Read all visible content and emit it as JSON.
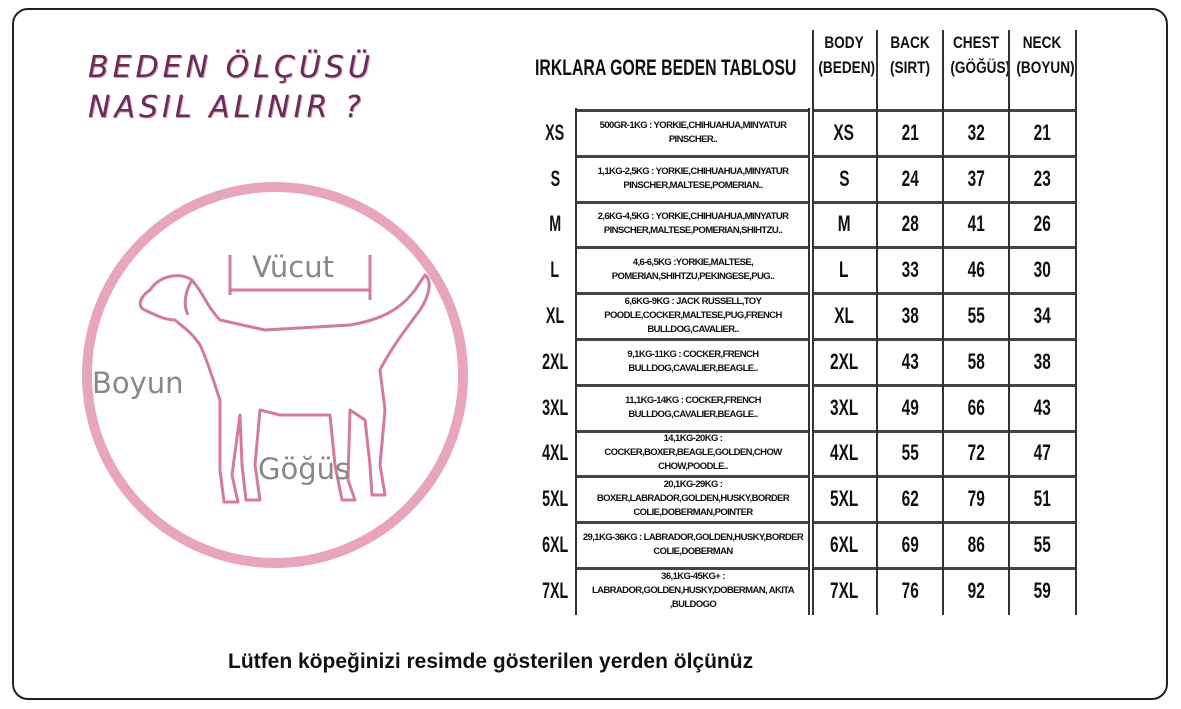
{
  "title_lines": [
    "BEDEN ÖLÇÜSÜ",
    "NASIL ALINIR ?"
  ],
  "diagram_labels": {
    "body": "Vücut",
    "neck": "Boyun",
    "chest": "Göğüs"
  },
  "colors": {
    "circle": "#e8a6bd",
    "dog_outline": "#d37aa0",
    "title": "#6b2a5a"
  },
  "table": {
    "title": "IRKLARA GORE BEDEN TABLOSU",
    "headers": [
      {
        "line1": "BODY",
        "line2": "(BEDEN)"
      },
      {
        "line1": "BACK",
        "line2": "(SIRT)"
      },
      {
        "line1": "CHEST",
        "line2": "(GÖĞÜS)"
      },
      {
        "line1": "NECK",
        "line2": "(BOYUN)"
      }
    ],
    "rows": [
      {
        "size": "XS",
        "desc": "500GR-1KG : YORKIE,CHIHUAHUA,MINYATUR PINSCHER..",
        "body": "XS",
        "back": "21",
        "chest": "32",
        "neck": "21"
      },
      {
        "size": "S",
        "desc": "1,1KG-2,5KG : YORKIE,CHIHUAHUA,MINYATUR PINSCHER,MALTESE,POMERIAN..",
        "body": "S",
        "back": "24",
        "chest": "37",
        "neck": "23"
      },
      {
        "size": "M",
        "desc": "2,6KG-4,5KG : YORKIE,CHIHUAHUA,MINYATUR PINSCHER,MALTESE,POMERIAN,SHIHTZU..",
        "body": "M",
        "back": "28",
        "chest": "41",
        "neck": "26"
      },
      {
        "size": "L",
        "desc": "4,6-6,5KG :YORKIE,MALTESE, POMERIAN,SHIHTZU,PEKINGESE,PUG..",
        "body": "L",
        "back": "33",
        "chest": "46",
        "neck": "30"
      },
      {
        "size": "XL",
        "desc": "6,6KG-9KG : JACK RUSSELL,TOY POODLE,COCKER,MALTESE,PUG,FRENCH BULLDOG,CAVALIER..",
        "body": "XL",
        "back": "38",
        "chest": "55",
        "neck": "34"
      },
      {
        "size": "2XL",
        "desc": "9,1KG-11KG : COCKER,FRENCH BULLDOG,CAVALIER,BEAGLE..",
        "body": "2XL",
        "back": "43",
        "chest": "58",
        "neck": "38"
      },
      {
        "size": "3XL",
        "desc": "11,1KG-14KG : COCKER,FRENCH BULLDOG,CAVALIER,BEAGLE..",
        "body": "3XL",
        "back": "49",
        "chest": "66",
        "neck": "43"
      },
      {
        "size": "4XL",
        "desc": "14,1KG-20KG : COCKER,BOXER,BEAGLE,GOLDEN,CHOW CHOW,POODLE..",
        "body": "4XL",
        "back": "55",
        "chest": "72",
        "neck": "47"
      },
      {
        "size": "5XL",
        "desc": "20,1KG-29KG : BOXER,LABRADOR,GOLDEN,HUSKY,BORDER COLIE,DOBERMAN,POINTER",
        "body": "5XL",
        "back": "62",
        "chest": "79",
        "neck": "51"
      },
      {
        "size": "6XL",
        "desc": "29,1KG-36KG : LABRADOR,GOLDEN,HUSKY,BORDER COLIE,DOBERMAN",
        "body": "6XL",
        "back": "69",
        "chest": "86",
        "neck": "55"
      },
      {
        "size": "7XL",
        "desc": "36,1KG-45KG+ : LABRADOR,GOLDEN,HUSKY,DOBERMAN, AKITA ,BULDOGO",
        "body": "7XL",
        "back": "76",
        "chest": "92",
        "neck": "59"
      }
    ]
  },
  "note": "Lütfen köpeğinizi resimde gösterilen yerden ölçünüz"
}
